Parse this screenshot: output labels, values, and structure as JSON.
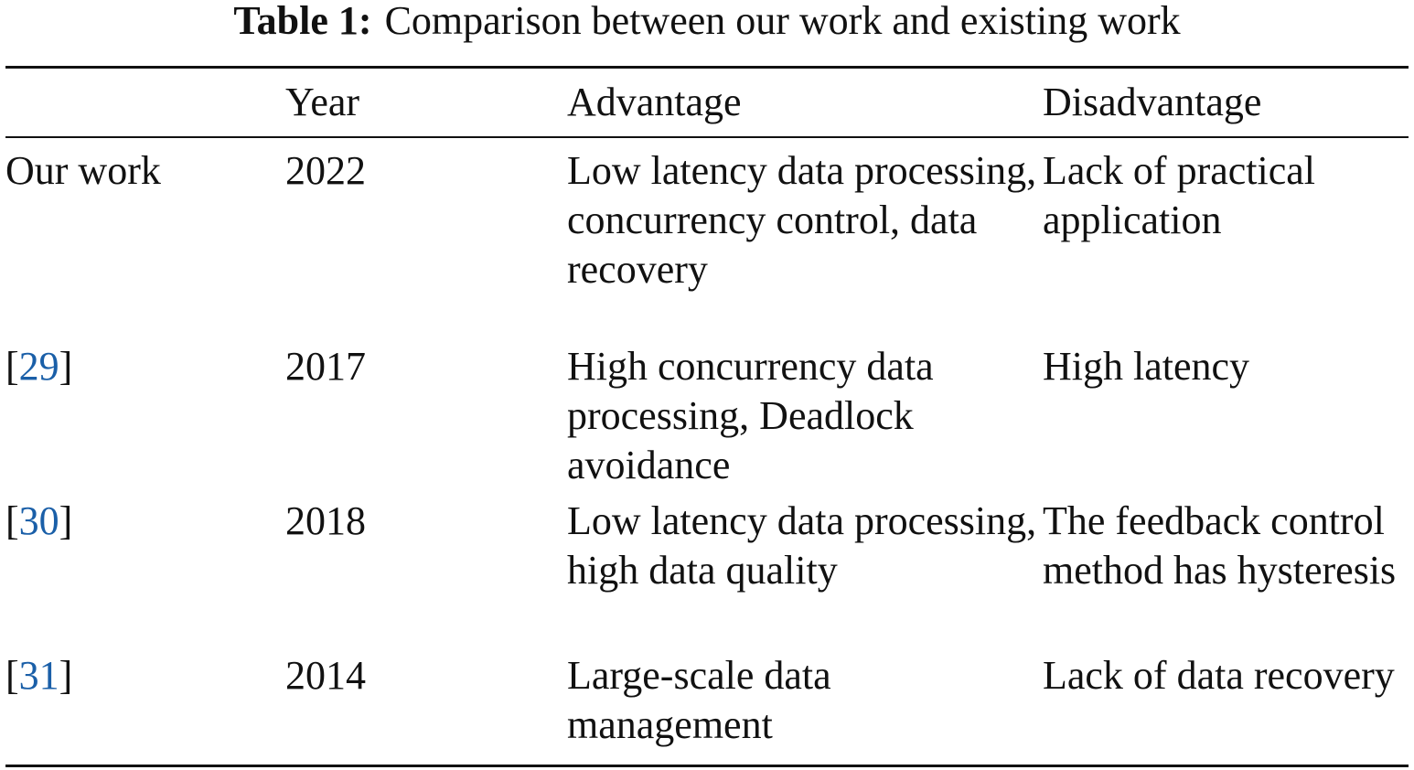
{
  "caption": {
    "label": "Table 1:",
    "text": "Comparison between our work and existing work"
  },
  "columns": [
    "",
    "Year",
    "Advantage",
    "Disadvantage"
  ],
  "rows": [
    {
      "work": "Our work",
      "year": "2022",
      "advantage": "Low latency data processing, concurrency control, data recovery",
      "disadvantage": "Lack of practical application"
    },
    {
      "ref": "29",
      "year": "2017",
      "advantage": "High concurrency data processing, Deadlock avoidance",
      "disadvantage": "High latency"
    },
    {
      "ref": "30",
      "year": "2018",
      "advantage": "Low latency data processing, high data quality",
      "disadvantage": "The feedback control method has hysteresis"
    },
    {
      "ref": "31",
      "year": "2014",
      "advantage": "Large-scale data management",
      "disadvantage": "Lack of data recovery"
    }
  ],
  "colors": {
    "text": "#111111",
    "reference_link": "#1a5fa8"
  }
}
